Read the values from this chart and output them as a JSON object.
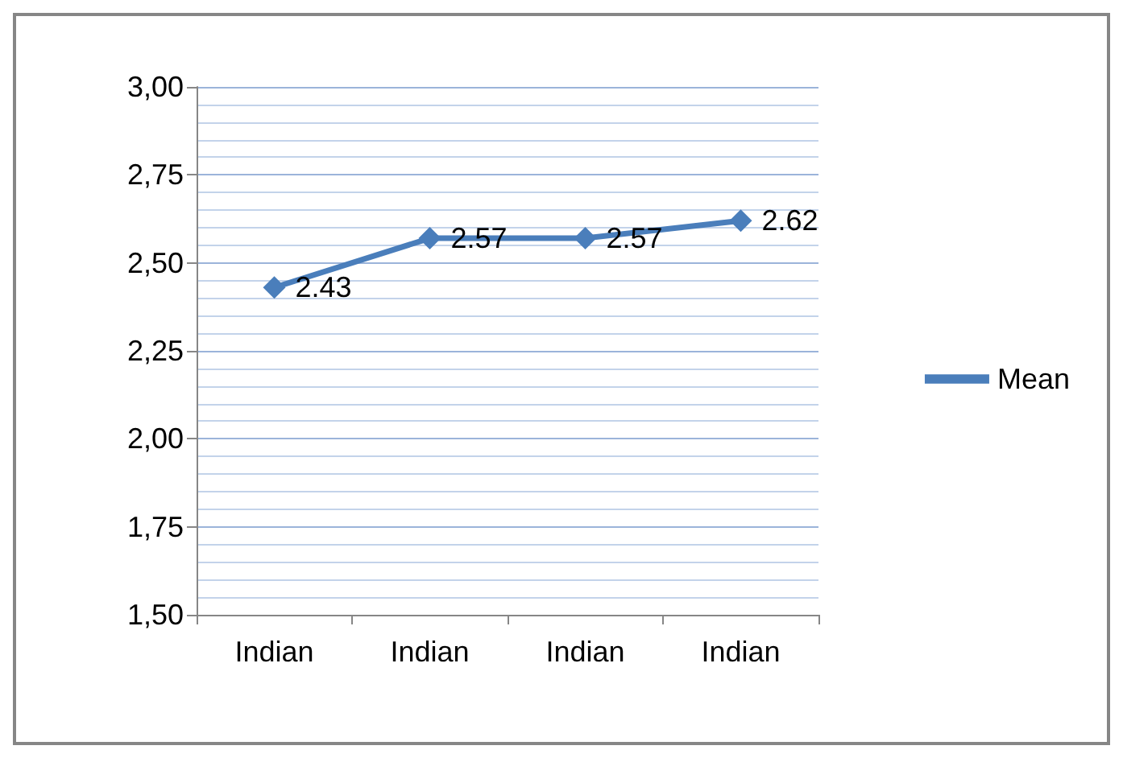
{
  "chart_data": {
    "type": "line",
    "categories": [
      "Indian",
      "Indian",
      "Indian",
      "Indian"
    ],
    "series": [
      {
        "name": "Mean",
        "color": "#4a7ebb",
        "values": [
          2.43,
          2.57,
          2.57,
          2.62
        ]
      }
    ],
    "ylim": [
      1.5,
      3.0
    ],
    "yticks": [
      {
        "value": 1.5,
        "label": "1,50"
      },
      {
        "value": 1.75,
        "label": "1,75"
      },
      {
        "value": 2.0,
        "label": "2,00"
      },
      {
        "value": 2.25,
        "label": "2,25"
      },
      {
        "value": 2.5,
        "label": "2,50"
      },
      {
        "value": 2.75,
        "label": "2,75"
      },
      {
        "value": 3.0,
        "label": "3,00"
      }
    ],
    "grid": "y",
    "legend": "right",
    "marker": "diamond",
    "line_style": "solid",
    "data_labels": true
  }
}
